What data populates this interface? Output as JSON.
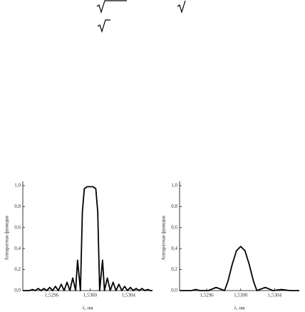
{
  "chart_data": [
    {
      "type": "line",
      "x": [
        1.5293,
        1.52937,
        1.5294,
        1.52943,
        1.52946,
        1.52949,
        1.52952,
        1.52955,
        1.52958,
        1.52961,
        1.52964,
        1.52967,
        1.5297,
        1.52973,
        1.52976,
        1.52979,
        1.52982,
        1.52985,
        1.52987,
        1.5299,
        1.52992,
        1.52994,
        1.52997,
        1.53,
        1.53003,
        1.53006,
        1.53008,
        1.5301,
        1.53013,
        1.53015,
        1.53018,
        1.53021,
        1.53024,
        1.53027,
        1.5303,
        1.53033,
        1.53036,
        1.53039,
        1.53042,
        1.53045,
        1.53048,
        1.53051,
        1.53054,
        1.53057,
        1.5306,
        1.53063,
        1.53065
      ],
      "series": [
        {
          "color": "#000000",
          "values": [
            0,
            0,
            0.01,
            0,
            0.02,
            0,
            0.02,
            0,
            0.03,
            0,
            0.04,
            0,
            0.06,
            0,
            0.08,
            0,
            0.12,
            0,
            0.29,
            0,
            0.75,
            0.97,
            0.99,
            0.99,
            0.99,
            0.97,
            0.75,
            0,
            0.29,
            0,
            0.12,
            0,
            0.08,
            0,
            0.06,
            0,
            0.04,
            0,
            0.03,
            0,
            0.02,
            0,
            0.02,
            0,
            0.01,
            0,
            0
          ]
        }
      ],
      "xlim": [
        1.5293,
        1.53065
      ],
      "xticks": [
        {
          "value": 1.5296,
          "label": "1,5296"
        },
        {
          "value": 1.53,
          "label": "1,5300"
        },
        {
          "value": 1.5304,
          "label": "1,5304"
        }
      ],
      "ylim": [
        0,
        1.0
      ],
      "yticks": [
        {
          "value": 0,
          "label": "0,0"
        },
        {
          "value": 0.2,
          "label": "0,2"
        },
        {
          "value": 0.4,
          "label": "0,4"
        },
        {
          "value": 0.6,
          "label": "0,6"
        },
        {
          "value": 0.8,
          "label": "0,8"
        },
        {
          "value": 1.0,
          "label": "1,0"
        }
      ],
      "x_label": "λ, нм",
      "y_label": "Аппаратная функция"
    },
    {
      "type": "line",
      "x": [
        1.52928,
        1.52942,
        1.52947,
        1.52952,
        1.52962,
        1.52971,
        1.52981,
        1.52985,
        1.5299,
        1.52995,
        1.53,
        1.53005,
        1.5301,
        1.53015,
        1.53019,
        1.53029,
        1.53038,
        1.53048,
        1.53058,
        1.53069
      ],
      "series": [
        {
          "color": "#000000",
          "values": [
            0,
            0,
            0.01,
            0,
            0,
            0.03,
            0,
            0.09,
            0.25,
            0.38,
            0.42,
            0.38,
            0.25,
            0.09,
            0,
            0.03,
            0,
            0.01,
            0,
            0
          ]
        }
      ],
      "xlim": [
        1.52928,
        1.53069
      ],
      "xticks": [
        {
          "value": 1.5296,
          "label": "1,5296"
        },
        {
          "value": 1.53,
          "label": "1,5300"
        },
        {
          "value": 1.5304,
          "label": "1,5304"
        }
      ],
      "ylim": [
        0,
        1.0
      ],
      "yticks": [
        {
          "value": 0,
          "label": "0,0"
        },
        {
          "value": 0.2,
          "label": "0,2"
        },
        {
          "value": 0.4,
          "label": "0,4"
        },
        {
          "value": 0.6,
          "label": "0,6"
        },
        {
          "value": 0.8,
          "label": "0,8"
        },
        {
          "value": 1.0,
          "label": "1,0"
        }
      ],
      "x_label": "λ, нм",
      "y_label": "Аппаратная функция"
    }
  ]
}
